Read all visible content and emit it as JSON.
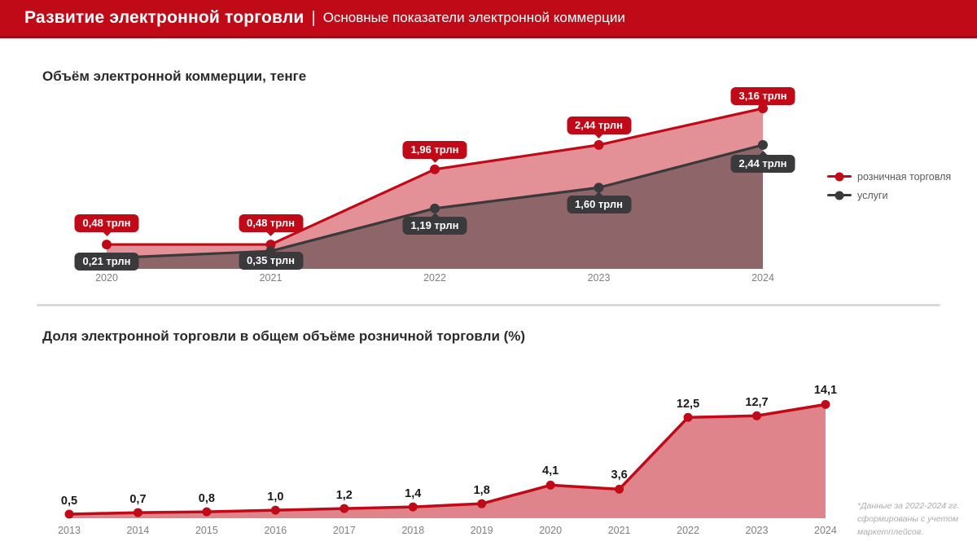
{
  "header": {
    "title": "Развитие электронной торговли",
    "separator": "|",
    "subtitle": "Основные показатели электронной коммерции"
  },
  "colors": {
    "accent": "#C00A18",
    "dark": "#3A3A3C",
    "divider": "#D9D9D9",
    "header_bg": "#C00A18"
  },
  "footnote": {
    "lines": [
      "*Данные за 2022-2024 гг.",
      "сформированы с учетом",
      "маркетплейсов."
    ]
  },
  "chart_data": [
    {
      "type": "area",
      "title": "Объём электронной коммерции, тенге",
      "categories": [
        "2020",
        "2021",
        "2022",
        "2023",
        "2024"
      ],
      "series": [
        {
          "name": "розничная торговля",
          "color": "#C00A18",
          "fill": "rgba(192,10,24,0.45)",
          "values": [
            0.48,
            0.48,
            1.96,
            2.44,
            3.16
          ],
          "labels": [
            "0,48 трлн",
            "0,48 трлн",
            "1,96 трлн",
            "2,44 трлн",
            "3,16 трлн"
          ]
        },
        {
          "name": "услуги",
          "color": "#3A3A3C",
          "fill": "rgba(58,58,60,0.5)",
          "values": [
            0.21,
            0.35,
            1.19,
            1.6,
            2.44
          ],
          "labels": [
            "0,21 трлн",
            "0,35 трлн",
            "1,19 трлн",
            "1,60 трлн",
            "2,44 трлн"
          ]
        }
      ],
      "unit": "трлн тенге",
      "ylim": [
        0,
        3.3
      ],
      "grid": false,
      "legend_position": "right"
    },
    {
      "type": "area",
      "title": "Доля электронной торговли в общем объёме розничной торговли (%)",
      "categories": [
        "2013",
        "2014",
        "2015",
        "2016",
        "2017",
        "2018",
        "2019",
        "2020",
        "2021",
        "2022",
        "2023",
        "2024"
      ],
      "series": [
        {
          "name": "доля электронной торговли",
          "color": "#C00A18",
          "fill": "rgba(192,10,24,0.5)",
          "values": [
            0.5,
            0.7,
            0.8,
            1.0,
            1.2,
            1.4,
            1.8,
            4.1,
            3.6,
            12.5,
            12.7,
            14.1
          ],
          "labels": [
            "0,5",
            "0,7",
            "0,8",
            "1,0",
            "1,2",
            "1,4",
            "1,8",
            "4,1",
            "3,6",
            "12,5",
            "12,7",
            "14,1"
          ]
        }
      ],
      "unit": "%",
      "ylim": [
        0,
        15
      ],
      "grid": false,
      "legend_position": "none"
    }
  ]
}
